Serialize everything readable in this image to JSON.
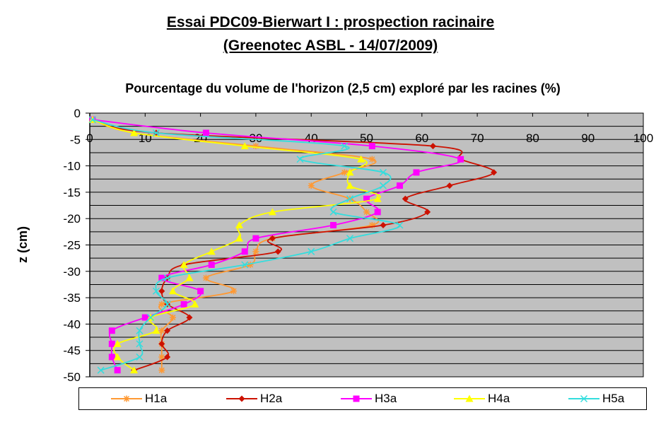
{
  "chart_data": {
    "type": "line",
    "title": "Essai PDC09-Bierwart I : prospection racinaire",
    "title_line2": "(Greenotec ASBL - 14/07/2009)",
    "subtitle": "Pourcentage du volume de l'horizon (2,5 cm) exploré par les racines (%)",
    "xlabel": "",
    "ylabel": "z (cm)",
    "xlim": [
      0,
      100
    ],
    "ylim": [
      -50,
      0
    ],
    "x_ticks": [
      0,
      10,
      20,
      30,
      40,
      50,
      60,
      70,
      80,
      90,
      100
    ],
    "y_ticks": [
      0,
      -5,
      -10,
      -15,
      -20,
      -25,
      -30,
      -35,
      -40,
      -45,
      -50
    ],
    "x_axis_position": "top",
    "grid": "horizontal",
    "plot_background": "#c0c0c0",
    "legend_position": "bottom",
    "depths": [
      -1.25,
      -3.75,
      -6.25,
      -8.75,
      -11.25,
      -13.75,
      -16.25,
      -18.75,
      -21.25,
      -23.75,
      -26.25,
      -28.75,
      -31.25,
      -33.75,
      -36.25,
      -38.75,
      -41.25,
      -43.75,
      -46.25,
      -48.75
    ],
    "series": [
      {
        "name": "H1a",
        "color": "#ff9933",
        "marker": "star",
        "values": [
          0.5,
          8,
          30,
          51,
          46,
          40,
          47,
          50,
          51,
          33,
          30,
          29,
          21,
          26,
          13,
          15,
          13,
          13,
          13,
          13
        ]
      },
      {
        "name": "H2a",
        "color": "#cc1100",
        "marker": "diamond",
        "values": [
          0.5,
          12,
          62,
          67,
          73,
          65,
          57,
          61,
          53,
          33,
          34,
          17,
          14,
          13,
          14,
          18,
          14,
          13,
          14,
          8
        ]
      },
      {
        "name": "H3a",
        "color": "#ff00ff",
        "marker": "square",
        "values": [
          0.5,
          21,
          51,
          67,
          59,
          56,
          50,
          52,
          44,
          30,
          28,
          22,
          13,
          20,
          17,
          10,
          4,
          4,
          4,
          5
        ]
      },
      {
        "name": "H4a",
        "color": "#ffff00",
        "marker": "triangle",
        "values": [
          0.5,
          8,
          28,
          49,
          47,
          47,
          52,
          33,
          27,
          27,
          22,
          17,
          18,
          15,
          19,
          11,
          12,
          5,
          5,
          8
        ]
      },
      {
        "name": "H5a",
        "color": "#33dddd",
        "marker": "x",
        "values": [
          0.5,
          12,
          46,
          38,
          53,
          53,
          47,
          44,
          56,
          47,
          40,
          28,
          14,
          12,
          14,
          11,
          9,
          9,
          9,
          2
        ]
      }
    ]
  }
}
